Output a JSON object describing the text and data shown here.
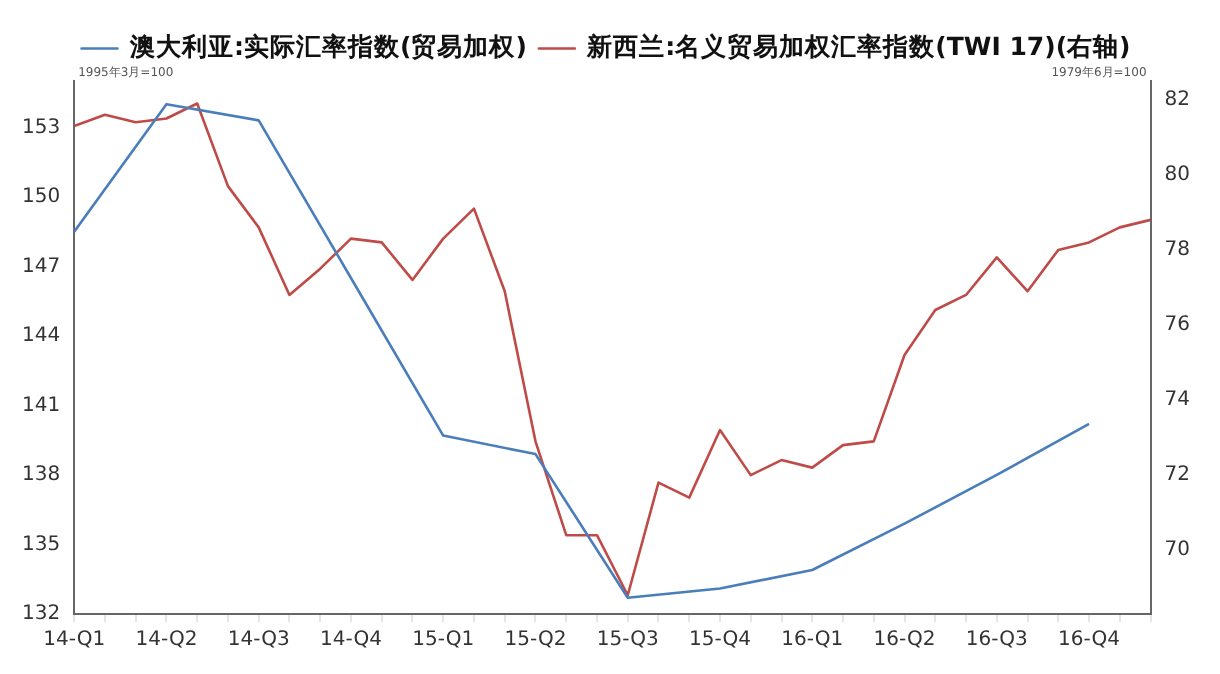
{
  "chart_data": {
    "type": "line",
    "legend": "top",
    "grid": false,
    "marker": "none",
    "line_style": "solid",
    "annotations": [
      "1995年3月=100",
      "1979年6月=100"
    ],
    "categories": [
      "14-Q1",
      null,
      null,
      "14-Q2",
      null,
      null,
      "14-Q3",
      null,
      null,
      "14-Q4",
      null,
      null,
      "15-Q1",
      null,
      null,
      "15-Q2",
      null,
      null,
      "15-Q3",
      null,
      null,
      "15-Q4",
      null,
      null,
      "16-Q1",
      null,
      null,
      "16-Q2",
      null,
      null,
      "16-Q3",
      null,
      null,
      "16-Q4",
      null,
      null
    ],
    "ylim": [
      132,
      155
    ],
    "yticks": [
      132,
      135,
      138,
      141,
      144,
      147,
      150,
      153
    ],
    "y2lim": [
      68.3,
      82.5
    ],
    "y2ticks": [
      70,
      72,
      74,
      76,
      78,
      80,
      82
    ],
    "series": [
      {
        "name": "澳大利亚:实际汇率指数(贸易加权)",
        "color": "#4a7ebb",
        "x": [
          "14-Q1",
          "14-Q2",
          "14-Q3",
          "14-Q4",
          "15-Q1",
          "15-Q2",
          "15-Q3",
          "15-Q4",
          "16-Q1",
          "16-Q2",
          "16-Q3",
          "16-Q4"
        ],
        "values": [
          148.5,
          154.0,
          153.3,
          146.5,
          139.7,
          138.9,
          132.7,
          133.1,
          133.9,
          135.9,
          138.0,
          140.2
        ]
      },
      {
        "name": "新西兰:名义贸易加权汇率指数(TWI 17)(右轴)",
        "color": "#be4b48",
        "axis": "y2",
        "values": [
          81.3,
          81.6,
          81.4,
          81.5,
          81.9,
          79.7,
          78.6,
          76.8,
          77.5,
          78.3,
          78.2,
          77.2,
          78.3,
          79.1,
          76.9,
          72.9,
          70.4,
          70.4,
          68.8,
          71.8,
          71.4,
          73.2,
          72.0,
          72.4,
          72.2,
          72.8,
          72.9,
          75.2,
          76.4,
          76.8,
          77.8,
          76.9,
          78.0,
          78.2,
          78.6,
          78.8
        ]
      }
    ]
  }
}
